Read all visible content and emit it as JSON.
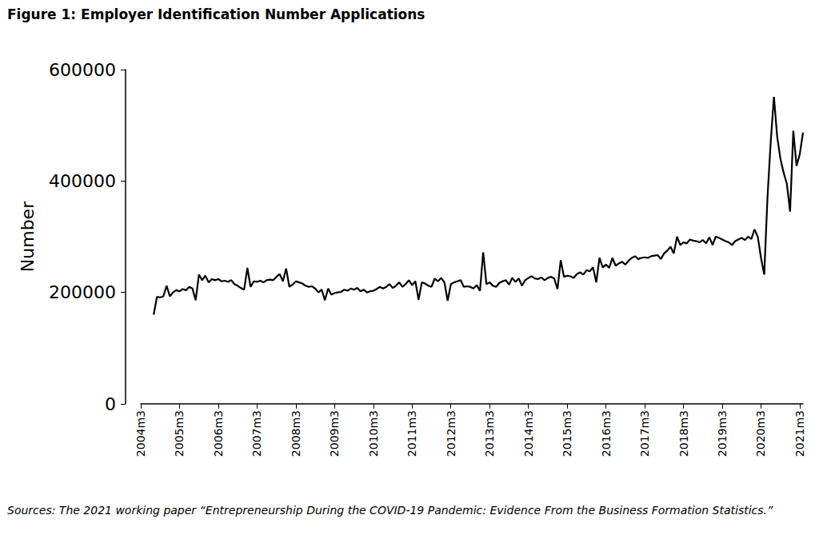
{
  "chart_data": {
    "type": "line",
    "title": "Figure 1: Employer Identification Number Applications",
    "source": "Sources: The 2021 working paper “Entrepreneurship During the COVID-19 Pandemic: Evidence From the Business Formation Statistics.”",
    "y_label": "Number",
    "color": "#000000",
    "grid": false,
    "ylim": [
      0,
      600000
    ],
    "yticks": [
      0,
      200000,
      400000,
      600000
    ],
    "categories": [
      "2004m3",
      null,
      null,
      null,
      null,
      null,
      null,
      null,
      null,
      null,
      null,
      null,
      "2005m3",
      null,
      null,
      null,
      null,
      null,
      null,
      null,
      null,
      null,
      null,
      null,
      "2006m3",
      null,
      null,
      null,
      null,
      null,
      null,
      null,
      null,
      null,
      null,
      null,
      "2007m3",
      null,
      null,
      null,
      null,
      null,
      null,
      null,
      null,
      null,
      null,
      null,
      "2008m3",
      null,
      null,
      null,
      null,
      null,
      null,
      null,
      null,
      null,
      null,
      null,
      "2009m3",
      null,
      null,
      null,
      null,
      null,
      null,
      null,
      null,
      null,
      null,
      null,
      "2010m3",
      null,
      null,
      null,
      null,
      null,
      null,
      null,
      null,
      null,
      null,
      null,
      "2011m3",
      null,
      null,
      null,
      null,
      null,
      null,
      null,
      null,
      null,
      null,
      null,
      "2012m3",
      null,
      null,
      null,
      null,
      null,
      null,
      null,
      null,
      null,
      null,
      null,
      "2013m3",
      null,
      null,
      null,
      null,
      null,
      null,
      null,
      null,
      null,
      null,
      null,
      "2014m3",
      null,
      null,
      null,
      null,
      null,
      null,
      null,
      null,
      null,
      null,
      null,
      "2015m3",
      null,
      null,
      null,
      null,
      null,
      null,
      null,
      null,
      null,
      null,
      null,
      "2016m3",
      null,
      null,
      null,
      null,
      null,
      null,
      null,
      null,
      null,
      null,
      null,
      "2017m3",
      null,
      null,
      null,
      null,
      null,
      null,
      null,
      null,
      null,
      null,
      null,
      "2018m3",
      null,
      null,
      null,
      null,
      null,
      null,
      null,
      null,
      null,
      null,
      null,
      "2019m3",
      null,
      null,
      null,
      null,
      null,
      null,
      null,
      null,
      null,
      null,
      null,
      "2020m3",
      null,
      null,
      null,
      null,
      null,
      null,
      null,
      null,
      null,
      null,
      null,
      "2021m3",
      null
    ],
    "values": [
      null,
      null,
      null,
      null,
      160000,
      192000,
      191000,
      193000,
      212000,
      193000,
      200000,
      204000,
      202000,
      206000,
      204000,
      210000,
      207000,
      186000,
      232000,
      222000,
      230000,
      218000,
      224000,
      222000,
      224000,
      220000,
      221000,
      219000,
      222000,
      215000,
      212000,
      208000,
      205000,
      244000,
      210000,
      220000,
      219000,
      221000,
      218000,
      222000,
      223000,
      222000,
      228000,
      233000,
      220000,
      243000,
      210000,
      214000,
      220000,
      218000,
      216000,
      212000,
      210000,
      211000,
      207000,
      200000,
      205000,
      186000,
      207000,
      196000,
      199000,
      200000,
      201000,
      205000,
      203000,
      207000,
      205000,
      208000,
      202000,
      205000,
      200000,
      202000,
      203000,
      206000,
      210000,
      207000,
      210000,
      215000,
      208000,
      212000,
      218000,
      210000,
      215000,
      222000,
      213000,
      220000,
      187000,
      218000,
      216000,
      212000,
      210000,
      225000,
      220000,
      226000,
      218000,
      185000,
      215000,
      218000,
      220000,
      222000,
      210000,
      211000,
      210000,
      207000,
      213000,
      203000,
      272000,
      215000,
      218000,
      212000,
      210000,
      217000,
      220000,
      222000,
      214000,
      226000,
      219000,
      225000,
      212000,
      222000,
      226000,
      229000,
      225000,
      224000,
      227000,
      222000,
      226000,
      228000,
      225000,
      206000,
      258000,
      228000,
      230000,
      229000,
      226000,
      233000,
      236000,
      232000,
      240000,
      238000,
      245000,
      218000,
      262000,
      245000,
      250000,
      244000,
      262000,
      248000,
      252000,
      255000,
      250000,
      257000,
      262000,
      265000,
      260000,
      262000,
      263000,
      262000,
      265000,
      266000,
      267000,
      260000,
      270000,
      275000,
      282000,
      270000,
      300000,
      285000,
      290000,
      288000,
      295000,
      293000,
      292000,
      290000,
      294000,
      288000,
      299000,
      285000,
      300000,
      298000,
      295000,
      292000,
      290000,
      285000,
      292000,
      295000,
      298000,
      294000,
      300000,
      296000,
      313000,
      300000,
      262000,
      232000,
      370000,
      470000,
      551000,
      480000,
      440000,
      415000,
      395000,
      345000,
      490000,
      427000,
      448000,
      487000
    ]
  }
}
